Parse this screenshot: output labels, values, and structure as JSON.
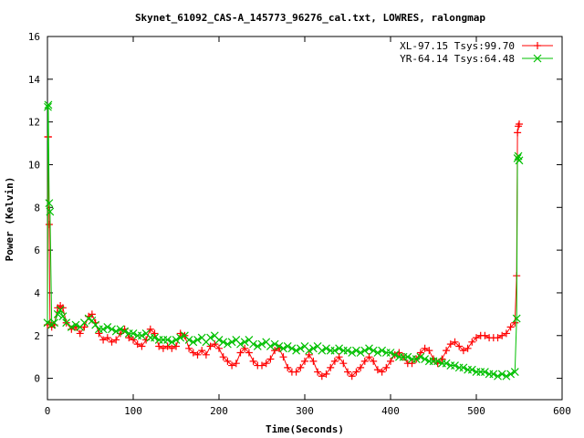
{
  "chart_data": {
    "type": "line",
    "title": "Skynet_61092_CAS-A_145773_96276_cal.txt, LOWRES, ralongmap",
    "xlabel": "Time(Seconds)",
    "ylabel": "Power (Kelvin)",
    "xlim": [
      0,
      600
    ],
    "ylim": [
      -1,
      16
    ],
    "x_ticks": [
      0,
      100,
      200,
      300,
      400,
      500,
      600
    ],
    "y_ticks": [
      0,
      2,
      4,
      6,
      8,
      10,
      12,
      14,
      16
    ],
    "grid": false,
    "legend_position": "top-right",
    "series": [
      {
        "name": "XL-97.15 Tsys:99.70",
        "color": "#ff0000",
        "marker": "plus",
        "points": [
          [
            0,
            2.5
          ],
          [
            0.5,
            11.3
          ],
          [
            1,
            11.3
          ],
          [
            2,
            7.2
          ],
          [
            3,
            2.6
          ],
          [
            5,
            2.4
          ],
          [
            8,
            2.5
          ],
          [
            12,
            3.3
          ],
          [
            15,
            3.4
          ],
          [
            18,
            3.3
          ],
          [
            22,
            2.6
          ],
          [
            28,
            2.3
          ],
          [
            33,
            2.4
          ],
          [
            38,
            2.1
          ],
          [
            43,
            2.4
          ],
          [
            48,
            2.9
          ],
          [
            52,
            3.0
          ],
          [
            56,
            2.6
          ],
          [
            60,
            2.1
          ],
          [
            65,
            1.8
          ],
          [
            70,
            1.9
          ],
          [
            75,
            1.7
          ],
          [
            80,
            1.8
          ],
          [
            85,
            2.1
          ],
          [
            90,
            2.3
          ],
          [
            95,
            1.9
          ],
          [
            100,
            1.8
          ],
          [
            105,
            1.6
          ],
          [
            110,
            1.5
          ],
          [
            115,
            1.8
          ],
          [
            120,
            2.3
          ],
          [
            125,
            2.1
          ],
          [
            130,
            1.5
          ],
          [
            135,
            1.4
          ],
          [
            140,
            1.5
          ],
          [
            145,
            1.4
          ],
          [
            150,
            1.5
          ],
          [
            155,
            2.1
          ],
          [
            160,
            2.0
          ],
          [
            165,
            1.4
          ],
          [
            170,
            1.2
          ],
          [
            175,
            1.1
          ],
          [
            180,
            1.3
          ],
          [
            185,
            1.1
          ],
          [
            190,
            1.5
          ],
          [
            195,
            1.6
          ],
          [
            200,
            1.4
          ],
          [
            205,
            1.0
          ],
          [
            210,
            0.8
          ],
          [
            215,
            0.6
          ],
          [
            220,
            0.7
          ],
          [
            225,
            1.2
          ],
          [
            230,
            1.4
          ],
          [
            235,
            1.2
          ],
          [
            240,
            0.8
          ],
          [
            245,
            0.6
          ],
          [
            250,
            0.6
          ],
          [
            255,
            0.7
          ],
          [
            260,
            0.9
          ],
          [
            265,
            1.3
          ],
          [
            270,
            1.4
          ],
          [
            275,
            1.0
          ],
          [
            280,
            0.5
          ],
          [
            285,
            0.3
          ],
          [
            290,
            0.3
          ],
          [
            295,
            0.5
          ],
          [
            300,
            0.8
          ],
          [
            305,
            1.1
          ],
          [
            310,
            0.8
          ],
          [
            315,
            0.3
          ],
          [
            320,
            0.1
          ],
          [
            325,
            0.2
          ],
          [
            330,
            0.5
          ],
          [
            335,
            0.8
          ],
          [
            340,
            1.0
          ],
          [
            345,
            0.7
          ],
          [
            350,
            0.3
          ],
          [
            355,
            0.1
          ],
          [
            360,
            0.3
          ],
          [
            365,
            0.5
          ],
          [
            370,
            0.8
          ],
          [
            375,
            1.0
          ],
          [
            380,
            0.8
          ],
          [
            385,
            0.4
          ],
          [
            390,
            0.3
          ],
          [
            395,
            0.5
          ],
          [
            400,
            0.8
          ],
          [
            405,
            1.1
          ],
          [
            410,
            1.2
          ],
          [
            415,
            1.0
          ],
          [
            420,
            0.7
          ],
          [
            425,
            0.7
          ],
          [
            430,
            0.9
          ],
          [
            435,
            1.2
          ],
          [
            440,
            1.4
          ],
          [
            445,
            1.3
          ],
          [
            450,
            0.9
          ],
          [
            455,
            0.7
          ],
          [
            460,
            0.9
          ],
          [
            465,
            1.3
          ],
          [
            470,
            1.6
          ],
          [
            475,
            1.7
          ],
          [
            480,
            1.5
          ],
          [
            485,
            1.3
          ],
          [
            490,
            1.4
          ],
          [
            495,
            1.7
          ],
          [
            500,
            1.9
          ],
          [
            505,
            2.0
          ],
          [
            510,
            2.0
          ],
          [
            515,
            1.9
          ],
          [
            520,
            1.9
          ],
          [
            525,
            1.9
          ],
          [
            530,
            2.0
          ],
          [
            535,
            2.1
          ],
          [
            540,
            2.4
          ],
          [
            545,
            2.6
          ],
          [
            547,
            4.8
          ],
          [
            548,
            11.5
          ],
          [
            549,
            11.8
          ],
          [
            550,
            11.9
          ]
        ]
      },
      {
        "name": "YR-64.14 Tsys:64.48",
        "color": "#00c000",
        "marker": "cross",
        "points": [
          [
            0,
            2.6
          ],
          [
            0.5,
            12.7
          ],
          [
            1,
            12.8
          ],
          [
            2,
            8.2
          ],
          [
            3,
            7.8
          ],
          [
            5,
            2.5
          ],
          [
            8,
            2.6
          ],
          [
            12,
            3.0
          ],
          [
            15,
            3.2
          ],
          [
            18,
            2.9
          ],
          [
            22,
            2.6
          ],
          [
            28,
            2.4
          ],
          [
            33,
            2.5
          ],
          [
            38,
            2.4
          ],
          [
            43,
            2.6
          ],
          [
            48,
            2.8
          ],
          [
            52,
            2.7
          ],
          [
            56,
            2.5
          ],
          [
            60,
            2.3
          ],
          [
            65,
            2.3
          ],
          [
            70,
            2.4
          ],
          [
            75,
            2.3
          ],
          [
            80,
            2.2
          ],
          [
            85,
            2.3
          ],
          [
            90,
            2.2
          ],
          [
            95,
            2.1
          ],
          [
            100,
            2.1
          ],
          [
            105,
            2.0
          ],
          [
            110,
            2.0
          ],
          [
            115,
            2.1
          ],
          [
            120,
            1.9
          ],
          [
            125,
            1.9
          ],
          [
            130,
            1.8
          ],
          [
            135,
            1.8
          ],
          [
            140,
            1.8
          ],
          [
            145,
            1.7
          ],
          [
            150,
            1.8
          ],
          [
            155,
            1.9
          ],
          [
            160,
            2.0
          ],
          [
            165,
            1.8
          ],
          [
            170,
            1.7
          ],
          [
            175,
            1.8
          ],
          [
            180,
            1.9
          ],
          [
            185,
            1.7
          ],
          [
            190,
            1.9
          ],
          [
            195,
            2.0
          ],
          [
            200,
            1.8
          ],
          [
            205,
            1.7
          ],
          [
            210,
            1.6
          ],
          [
            215,
            1.7
          ],
          [
            220,
            1.8
          ],
          [
            225,
            1.6
          ],
          [
            230,
            1.7
          ],
          [
            235,
            1.8
          ],
          [
            240,
            1.6
          ],
          [
            245,
            1.5
          ],
          [
            250,
            1.6
          ],
          [
            255,
            1.7
          ],
          [
            260,
            1.5
          ],
          [
            265,
            1.6
          ],
          [
            270,
            1.5
          ],
          [
            275,
            1.4
          ],
          [
            280,
            1.5
          ],
          [
            285,
            1.4
          ],
          [
            290,
            1.3
          ],
          [
            295,
            1.4
          ],
          [
            300,
            1.5
          ],
          [
            305,
            1.3
          ],
          [
            310,
            1.4
          ],
          [
            315,
            1.5
          ],
          [
            320,
            1.3
          ],
          [
            325,
            1.4
          ],
          [
            330,
            1.3
          ],
          [
            335,
            1.3
          ],
          [
            340,
            1.4
          ],
          [
            345,
            1.3
          ],
          [
            350,
            1.3
          ],
          [
            355,
            1.2
          ],
          [
            360,
            1.3
          ],
          [
            365,
            1.2
          ],
          [
            370,
            1.3
          ],
          [
            375,
            1.4
          ],
          [
            380,
            1.3
          ],
          [
            385,
            1.2
          ],
          [
            390,
            1.3
          ],
          [
            395,
            1.2
          ],
          [
            400,
            1.2
          ],
          [
            405,
            1.1
          ],
          [
            410,
            1.0
          ],
          [
            415,
            1.0
          ],
          [
            420,
            1.0
          ],
          [
            425,
            0.9
          ],
          [
            430,
            0.9
          ],
          [
            435,
            1.0
          ],
          [
            440,
            0.9
          ],
          [
            445,
            0.8
          ],
          [
            450,
            0.8
          ],
          [
            455,
            0.8
          ],
          [
            460,
            0.7
          ],
          [
            465,
            0.7
          ],
          [
            470,
            0.6
          ],
          [
            475,
            0.6
          ],
          [
            480,
            0.5
          ],
          [
            485,
            0.5
          ],
          [
            490,
            0.4
          ],
          [
            495,
            0.4
          ],
          [
            500,
            0.3
          ],
          [
            505,
            0.3
          ],
          [
            510,
            0.3
          ],
          [
            515,
            0.2
          ],
          [
            520,
            0.2
          ],
          [
            525,
            0.1
          ],
          [
            530,
            0.2
          ],
          [
            535,
            0.1
          ],
          [
            540,
            0.2
          ],
          [
            545,
            0.3
          ],
          [
            547,
            2.8
          ],
          [
            548,
            10.3
          ],
          [
            549,
            10.4
          ],
          [
            550,
            10.2
          ]
        ]
      }
    ]
  }
}
